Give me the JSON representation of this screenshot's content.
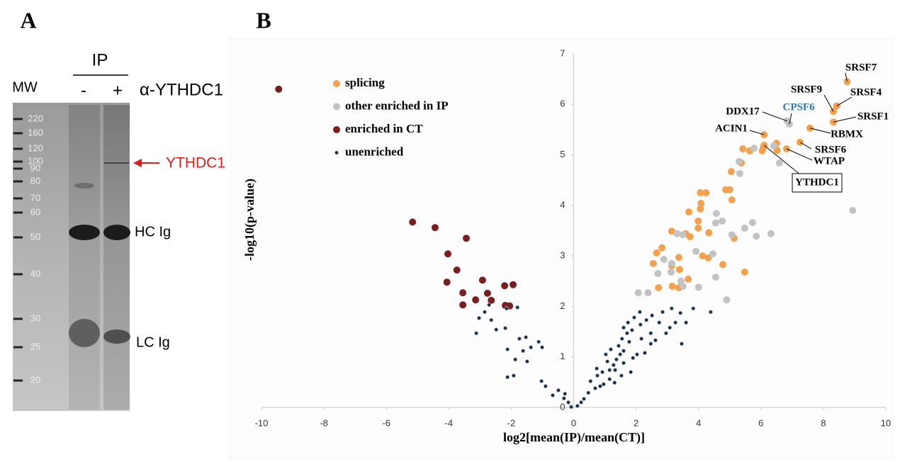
{
  "panel_labels": [
    "A",
    "B"
  ],
  "panel_a": {
    "ip_label": "IP",
    "mw_label": "MW",
    "lanes": [
      "-",
      "+"
    ],
    "antibody": "α-YTHDC1",
    "mw_markers": [
      220,
      160,
      120,
      100,
      90,
      80,
      70,
      60,
      50,
      40,
      30,
      25,
      20
    ],
    "target_label": "YTHDC1",
    "band_labels": [
      "HC Ig",
      "LC Ig"
    ]
  },
  "chart_data": {
    "type": "scatter",
    "x_label": "log2[mean(IP)/mean(CT)]",
    "y_label": "-log10(p-value)",
    "xlim": [
      -10,
      10
    ],
    "xticks": [
      -10,
      -8,
      -6,
      -4,
      -2,
      0,
      2,
      4,
      6,
      8,
      10
    ],
    "ylim": [
      0,
      7
    ],
    "yticks": [
      0,
      1,
      2,
      3,
      4,
      5,
      6,
      7
    ],
    "series": [
      {
        "name": "splicing",
        "color": "#f4a14f",
        "marker": "circle",
        "x": [
          8.76,
          8.43,
          8.32,
          8.32,
          7.57,
          6.1,
          7.25,
          6.82,
          6.1,
          6.5,
          6.08,
          6.52,
          5.64,
          6.04,
          5.42,
          5.37,
          5.05,
          5.0,
          4.87,
          5.07,
          4.24,
          4.06,
          4.08,
          4.06,
          3.69,
          3.99,
          3.99,
          3.14,
          3.59,
          3.73,
          4.33,
          5.14,
          2.83,
          2.66,
          2.55,
          3.37,
          4.13,
          4.31,
          3.14,
          3.39,
          4.78,
          5.48,
          3.67,
          3.16,
          2.72,
          3.37
        ],
        "values": [
          6.45,
          5.97,
          5.86,
          5.65,
          5.53,
          5.4,
          5.25,
          5.12,
          5.19,
          5.23,
          5.15,
          5.09,
          5.08,
          5.08,
          5.12,
          4.84,
          4.67,
          4.31,
          4.31,
          4.11,
          4.25,
          4.25,
          4.04,
          3.93,
          3.87,
          3.69,
          3.55,
          3.49,
          3.44,
          3.38,
          3.46,
          3.35,
          3.16,
          3.06,
          2.85,
          2.97,
          3.0,
          2.96,
          2.81,
          2.73,
          2.83,
          2.68,
          2.54,
          2.4,
          2.37,
          2.37
        ]
      },
      {
        "name": "other enriched in IP",
        "color": "#c3c3c3",
        "marker": "circle",
        "x": [
          6.84,
          6.91,
          6.41,
          5.78,
          6.59,
          5.3,
          5.32,
          4.57,
          4.76,
          5.73,
          5.48,
          5.07,
          5.85,
          6.32,
          8.94,
          4.55,
          3.31,
          3.5,
          3.92,
          4.46,
          2.89,
          3.14,
          2.7,
          3.12,
          3.44,
          3.5,
          4.0,
          4.55,
          2.07,
          2.38,
          4.9
        ],
        "values": [
          5.67,
          5.61,
          5.18,
          5.13,
          4.84,
          4.87,
          4.63,
          3.84,
          3.69,
          3.66,
          3.55,
          3.42,
          3.39,
          3.44,
          3.9,
          3.65,
          3.44,
          3.42,
          3.09,
          3.04,
          2.93,
          2.85,
          2.65,
          2.68,
          2.5,
          2.4,
          2.38,
          2.58,
          2.27,
          2.27,
          2.13
        ]
      },
      {
        "name": "enriched in CT",
        "color": "#7a1f1f",
        "marker": "circle",
        "x": [
          -9.45,
          -5.16,
          -4.44,
          -3.44,
          -4.03,
          -3.74,
          -2.92,
          -4.06,
          -2.21,
          -1.94,
          -3.55,
          -2.76,
          -3.14,
          -2.64,
          -3.55,
          -2.19,
          -2.05
        ],
        "values": [
          6.3,
          3.67,
          3.56,
          3.35,
          3.04,
          2.72,
          2.52,
          2.48,
          2.41,
          2.43,
          2.27,
          2.26,
          2.13,
          2.12,
          2.03,
          2.02,
          2.01
        ]
      },
      {
        "name": "unenriched",
        "color": "#1d2b3c",
        "marker": "dot",
        "x": [
          -2.15,
          -1.8,
          -2.71,
          -2.85,
          -3.03,
          -2.64,
          -2.48,
          -2.19,
          -3.12,
          -1.74,
          -1.53,
          -1.37,
          -1.12,
          -1.01,
          -1.62,
          -2.12,
          -1.87,
          -1.49,
          -2.12,
          -1.92,
          -1.03,
          -0.9,
          -0.49,
          -0.28,
          -0.67,
          -0.31,
          -0.17,
          -0.08,
          0.12,
          0.24,
          0.33,
          0.69,
          0.96,
          1.15,
          1.28,
          1.37,
          1.03,
          1.19,
          1.44,
          1.55,
          1.71,
          1.87,
          1.6,
          1.74,
          2.12,
          1.94,
          2.14,
          2.33,
          2.51,
          2.85,
          3.14,
          3.42,
          3.83,
          4.39,
          3.6,
          2.96,
          2.62,
          3.46,
          2.28,
          1.9,
          1.6,
          1.33,
          1.53,
          1.15,
          0.92,
          0.76,
          0.54,
          0.74,
          1.08,
          1.83,
          2.03,
          2.47,
          3.08,
          2.74,
          3.26,
          2.47,
          2.17,
          1.49,
          0.85,
          0.47,
          1.31,
          1.6,
          1.78
        ],
        "values": [
          1.96,
          1.98,
          2.03,
          1.89,
          1.77,
          1.73,
          1.54,
          1.57,
          1.47,
          1.36,
          1.39,
          1.19,
          1.3,
          1.19,
          1.12,
          1.15,
          0.95,
          0.91,
          0.6,
          0.63,
          0.52,
          0.42,
          0.34,
          0.27,
          0.24,
          0.18,
          0.1,
          0.01,
          0.03,
          0.1,
          0.17,
          0.38,
          0.46,
          0.74,
          0.84,
          0.95,
          1.05,
          1.15,
          1.22,
          1.36,
          1.47,
          1.53,
          1.58,
          1.68,
          1.89,
          1.78,
          1.64,
          1.73,
          1.82,
          1.89,
          1.96,
          1.87,
          1.96,
          1.89,
          1.68,
          1.47,
          1.33,
          1.26,
          1.08,
          0.98,
          0.88,
          0.74,
          0.63,
          0.56,
          0.7,
          0.63,
          0.52,
          0.77,
          0.91,
          0.7,
          1.05,
          1.26,
          1.58,
          1.68,
          1.68,
          1.47,
          1.36,
          1.05,
          0.42,
          0.29,
          0.49,
          1.12,
          1.3
        ]
      }
    ],
    "annotations": [
      {
        "text": "SRSF7",
        "x": 8.76,
        "y": 6.45,
        "color": "#000000"
      },
      {
        "text": "SRSF9",
        "x": 8.32,
        "y": 5.86,
        "color": "#000000"
      },
      {
        "text": "SRSF4",
        "x": 8.43,
        "y": 5.97,
        "color": "#000000"
      },
      {
        "text": "SRSF1",
        "x": 8.32,
        "y": 5.65,
        "color": "#000000"
      },
      {
        "text": "CPSF6",
        "x": 6.91,
        "y": 5.61,
        "color": "#2e75b6"
      },
      {
        "text": "DDX17",
        "x": 6.84,
        "y": 5.67,
        "color": "#000000"
      },
      {
        "text": "RBMX",
        "x": 7.57,
        "y": 5.53,
        "color": "#000000"
      },
      {
        "text": "ACIN1",
        "x": 6.1,
        "y": 5.4,
        "color": "#000000"
      },
      {
        "text": "SRSF6",
        "x": 7.25,
        "y": 5.25,
        "color": "#000000"
      },
      {
        "text": "WTAP",
        "x": 6.82,
        "y": 5.12,
        "color": "#000000"
      },
      {
        "text": "YTHDC1",
        "x": 6.1,
        "y": 5.19,
        "color": "#000000",
        "boxed": true
      }
    ]
  }
}
